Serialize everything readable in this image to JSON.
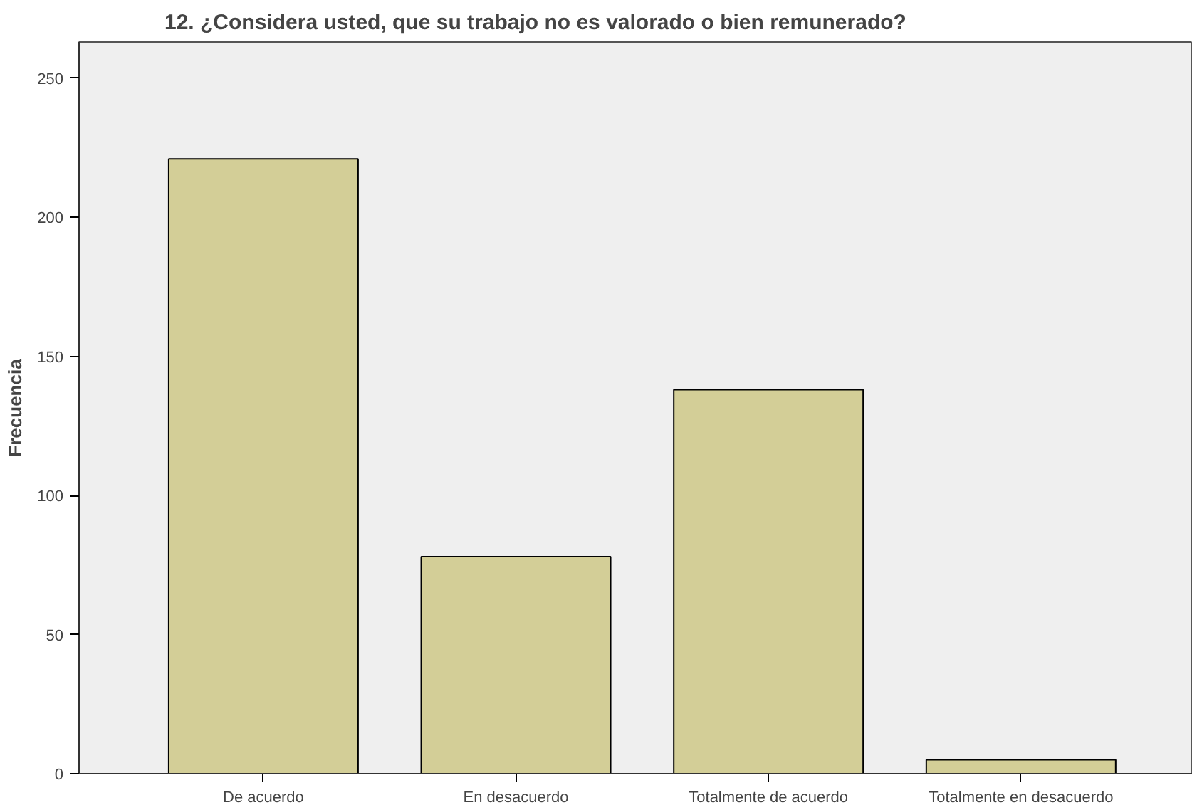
{
  "chart_data": {
    "type": "bar",
    "title": "12. ¿Considera usted, que su trabajo no es valorado o bien remunerado?",
    "ylabel": "Frecuencia",
    "categories": [
      "De acuerdo",
      "En desacuerdo",
      "Totalmente de acuerdo",
      "Totalmente en desacuerdo"
    ],
    "values": [
      221,
      78,
      138,
      5
    ],
    "color": "#d3ce97",
    "ylim": [
      0,
      263
    ],
    "yticks": [
      0,
      50,
      100,
      150,
      200,
      250
    ],
    "grid": false
  }
}
